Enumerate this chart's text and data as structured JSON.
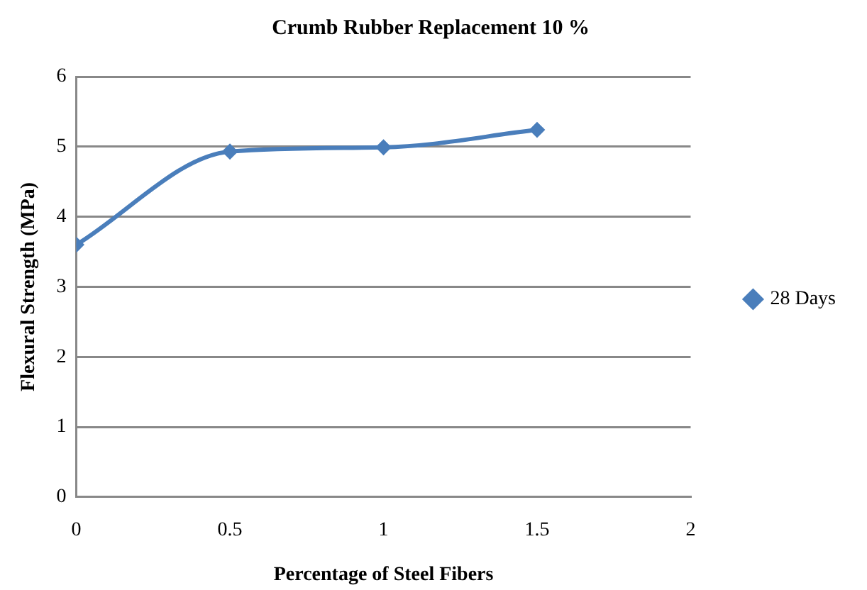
{
  "chart_data": {
    "type": "line",
    "title": "Crumb Rubber Replacement 10 %",
    "xlabel": "Percentage of Steel Fibers",
    "ylabel": "Flexural Strength (MPa)",
    "x": [
      0,
      0.5,
      1,
      1.5
    ],
    "series": [
      {
        "name": "28 Days",
        "color": "#4a7ebb",
        "values": [
          3.6,
          4.93,
          4.99,
          5.24
        ]
      }
    ],
    "xlim": [
      0,
      2
    ],
    "xticks": [
      0,
      0.5,
      1,
      1.5,
      2
    ],
    "ylim": [
      0,
      6
    ],
    "yticks": [
      0,
      1,
      2,
      3,
      4,
      5,
      6
    ],
    "grid": "y",
    "legend": "right",
    "marker": "diamond",
    "line_style": "solid"
  }
}
